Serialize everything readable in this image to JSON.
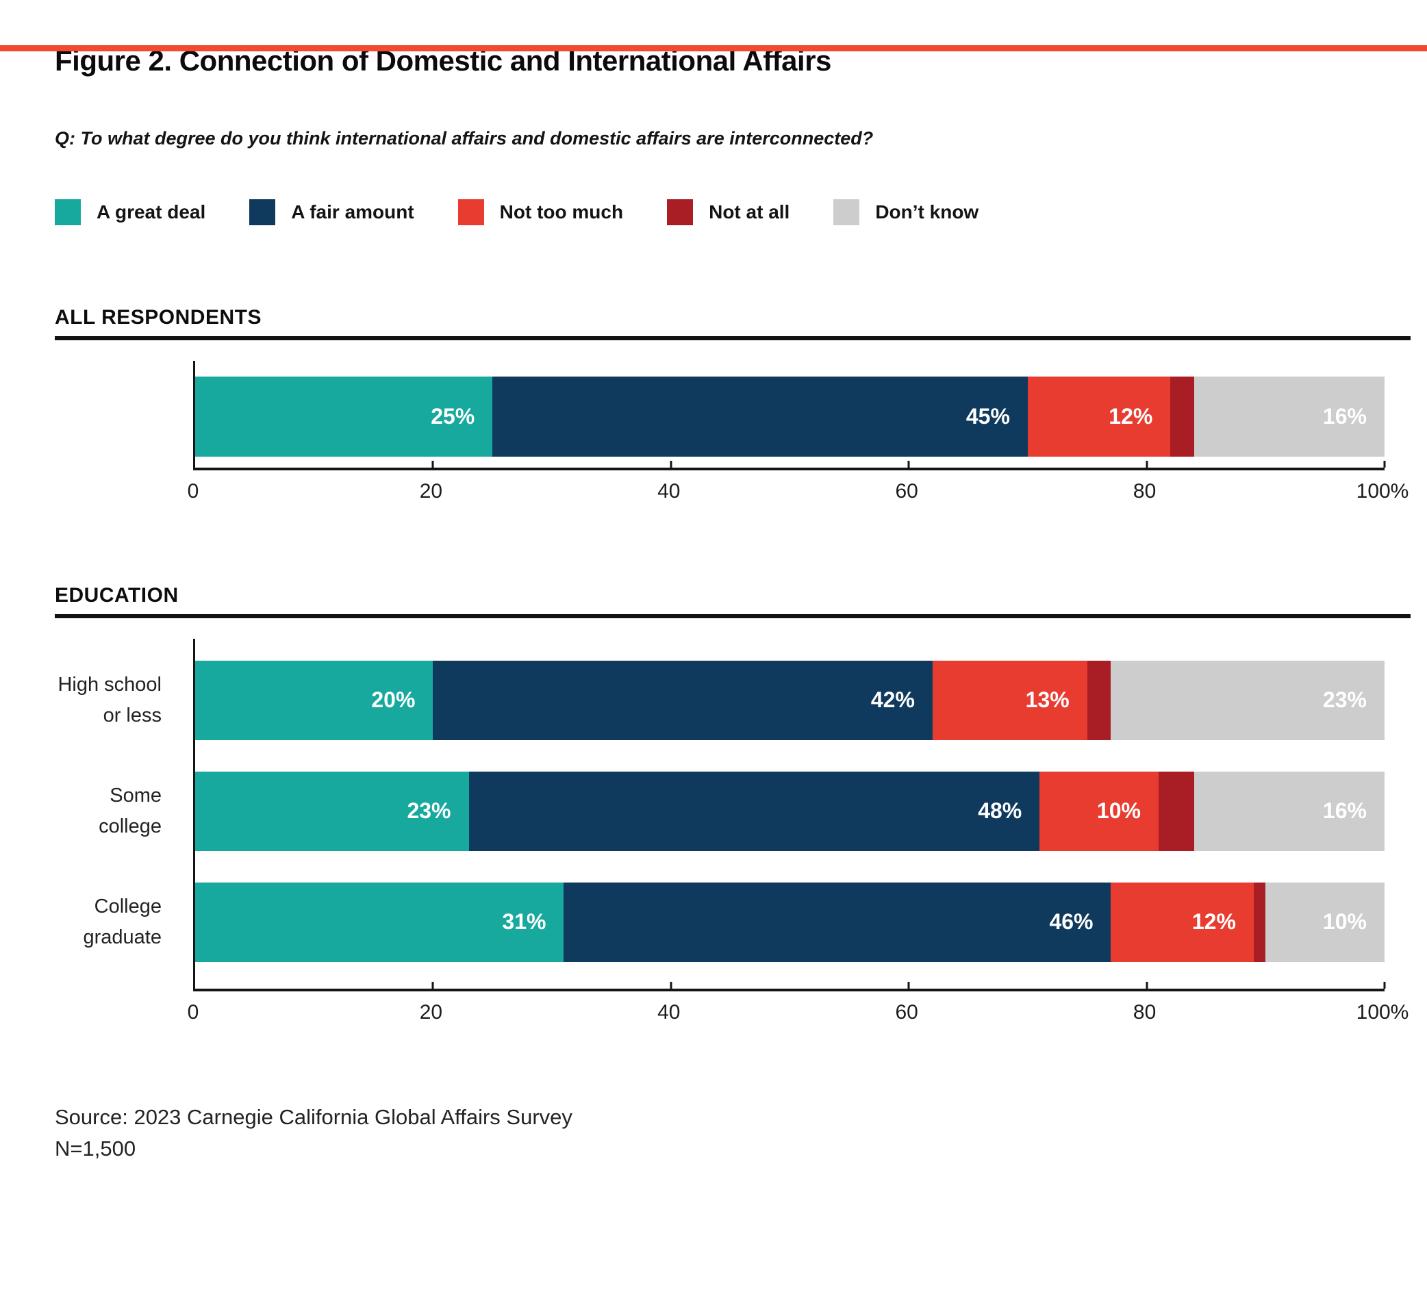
{
  "page": {
    "accent_color": "#F04B32",
    "background": "#FFFFFF",
    "text_color": "#111111"
  },
  "title": "Figure 2. Connection of Domestic and International Affairs",
  "question": "Q: To what degree do you think international affairs and domestic affairs are interconnected?",
  "legend": {
    "items": [
      {
        "label": "A great deal",
        "color": "#17A99E"
      },
      {
        "label": "A fair amount",
        "color": "#0F3A5D"
      },
      {
        "label": "Not too much",
        "color": "#E93C31"
      },
      {
        "label": "Not at all",
        "color": "#A91E24"
      },
      {
        "label": "Don’t know",
        "color": "#CDCDCD"
      }
    ]
  },
  "chart_data": [
    {
      "type": "bar",
      "orientation": "horizontal",
      "stacked": true,
      "section_title": "ALL RESPONDENTS",
      "categories": [
        "All respondents"
      ],
      "category_lines": [
        []
      ],
      "xlim": [
        0,
        100
      ],
      "x_ticks": [
        {
          "value": 0,
          "label": "0"
        },
        {
          "value": 20,
          "label": "20"
        },
        {
          "value": 40,
          "label": "40"
        },
        {
          "value": 60,
          "label": "60"
        },
        {
          "value": 80,
          "label": "80"
        },
        {
          "value": 100,
          "label": "100%"
        }
      ],
      "series": [
        {
          "name": "A great deal",
          "color": "#17A99E",
          "values": [
            25
          ],
          "labels": [
            "25%"
          ]
        },
        {
          "name": "A fair amount",
          "color": "#0F3A5D",
          "values": [
            45
          ],
          "labels": [
            "45%"
          ]
        },
        {
          "name": "Not too much",
          "color": "#E93C31",
          "values": [
            12
          ],
          "labels": [
            "12%"
          ]
        },
        {
          "name": "Not at all",
          "color": "#A91E24",
          "values": [
            2
          ],
          "labels": [
            ""
          ]
        },
        {
          "name": "Don’t know",
          "color": "#CDCDCD",
          "values": [
            16
          ],
          "labels": [
            "16%"
          ]
        }
      ]
    },
    {
      "type": "bar",
      "orientation": "horizontal",
      "stacked": true,
      "section_title": "EDUCATION",
      "categories": [
        "High school or less",
        "Some college",
        "College graduate"
      ],
      "category_lines": [
        [
          "High school",
          "or less"
        ],
        [
          "Some college"
        ],
        [
          "College",
          "graduate"
        ]
      ],
      "xlim": [
        0,
        100
      ],
      "x_ticks": [
        {
          "value": 0,
          "label": "0"
        },
        {
          "value": 20,
          "label": "20"
        },
        {
          "value": 40,
          "label": "40"
        },
        {
          "value": 60,
          "label": "60"
        },
        {
          "value": 80,
          "label": "80"
        },
        {
          "value": 100,
          "label": "100%"
        }
      ],
      "series": [
        {
          "name": "A great deal",
          "color": "#17A99E",
          "values": [
            20,
            23,
            31
          ],
          "labels": [
            "20%",
            "23%",
            "31%"
          ]
        },
        {
          "name": "A fair amount",
          "color": "#0F3A5D",
          "values": [
            42,
            48,
            46
          ],
          "labels": [
            "42%",
            "48%",
            "46%"
          ]
        },
        {
          "name": "Not too much",
          "color": "#E93C31",
          "values": [
            13,
            10,
            12
          ],
          "labels": [
            "13%",
            "10%",
            "12%"
          ]
        },
        {
          "name": "Not at all",
          "color": "#A91E24",
          "values": [
            2,
            3,
            1
          ],
          "labels": [
            "",
            "",
            ""
          ]
        },
        {
          "name": "Don’t know",
          "color": "#CDCDCD",
          "values": [
            23,
            16,
            10
          ],
          "labels": [
            "23%",
            "16%",
            "10%"
          ]
        }
      ]
    }
  ],
  "footer": {
    "source": "Source: 2023 Carnegie California Global Affairs Survey",
    "sample_size": "N=1,500"
  }
}
